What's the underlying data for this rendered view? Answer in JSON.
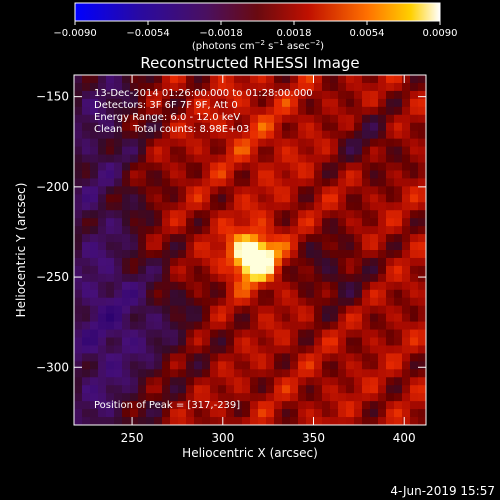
{
  "chart_data": {
    "type": "heatmap",
    "title": "Reconstructed RHESSI Image",
    "xlabel": "Heliocentric X (arcsec)",
    "ylabel": "Heliocentric Y (arcsec)",
    "xlim": [
      218,
      412
    ],
    "ylim": [
      -332,
      -138
    ],
    "x_ticks": [
      250,
      300,
      350,
      400
    ],
    "y_ticks": [
      -150,
      -200,
      -250,
      -300
    ],
    "x_tick_labels": [
      "250",
      "300",
      "350",
      "400"
    ],
    "y_tick_labels": [
      "−150",
      "−200",
      "−250",
      "−300"
    ],
    "colorbar": {
      "min": -0.009,
      "max": 0.009,
      "ticks": [
        -0.009,
        -0.0054,
        -0.0018,
        0.0018,
        0.0054,
        0.009
      ],
      "tick_labels": [
        "−0.0090",
        "−0.0054",
        "−0.0018",
        "0.0018",
        "0.0054",
        "0.0090"
      ],
      "unit_prefix": "(photons cm",
      "unit_exp1": "−2",
      "unit_mid": " s",
      "unit_exp2": "−1",
      "unit_mid2": " asec",
      "unit_exp3": "−2",
      "unit_suffix": ")",
      "colormap": [
        "#0000ff",
        "#3a0a7a",
        "#5a1a8c",
        "#8b0000",
        "#d61a00",
        "#ff7a00",
        "#ffd000",
        "#ffffff"
      ]
    },
    "annotations": {
      "time_range": "13-Dec-2014 01:26:00.000 to 01:28:00.000",
      "detectors": "Detectors: 3F 6F 7F 9F, Att 0",
      "energy_range": "Energy Range: 6.0 - 12.0 keV",
      "clean_label": "Clean",
      "total_counts": "Total counts: 8.98E+03",
      "peak_position": "Position of Peak = [317,-239]"
    },
    "peak": {
      "x": 317,
      "y": -239
    },
    "footer_date": "4-Jun-2019 15:57"
  }
}
